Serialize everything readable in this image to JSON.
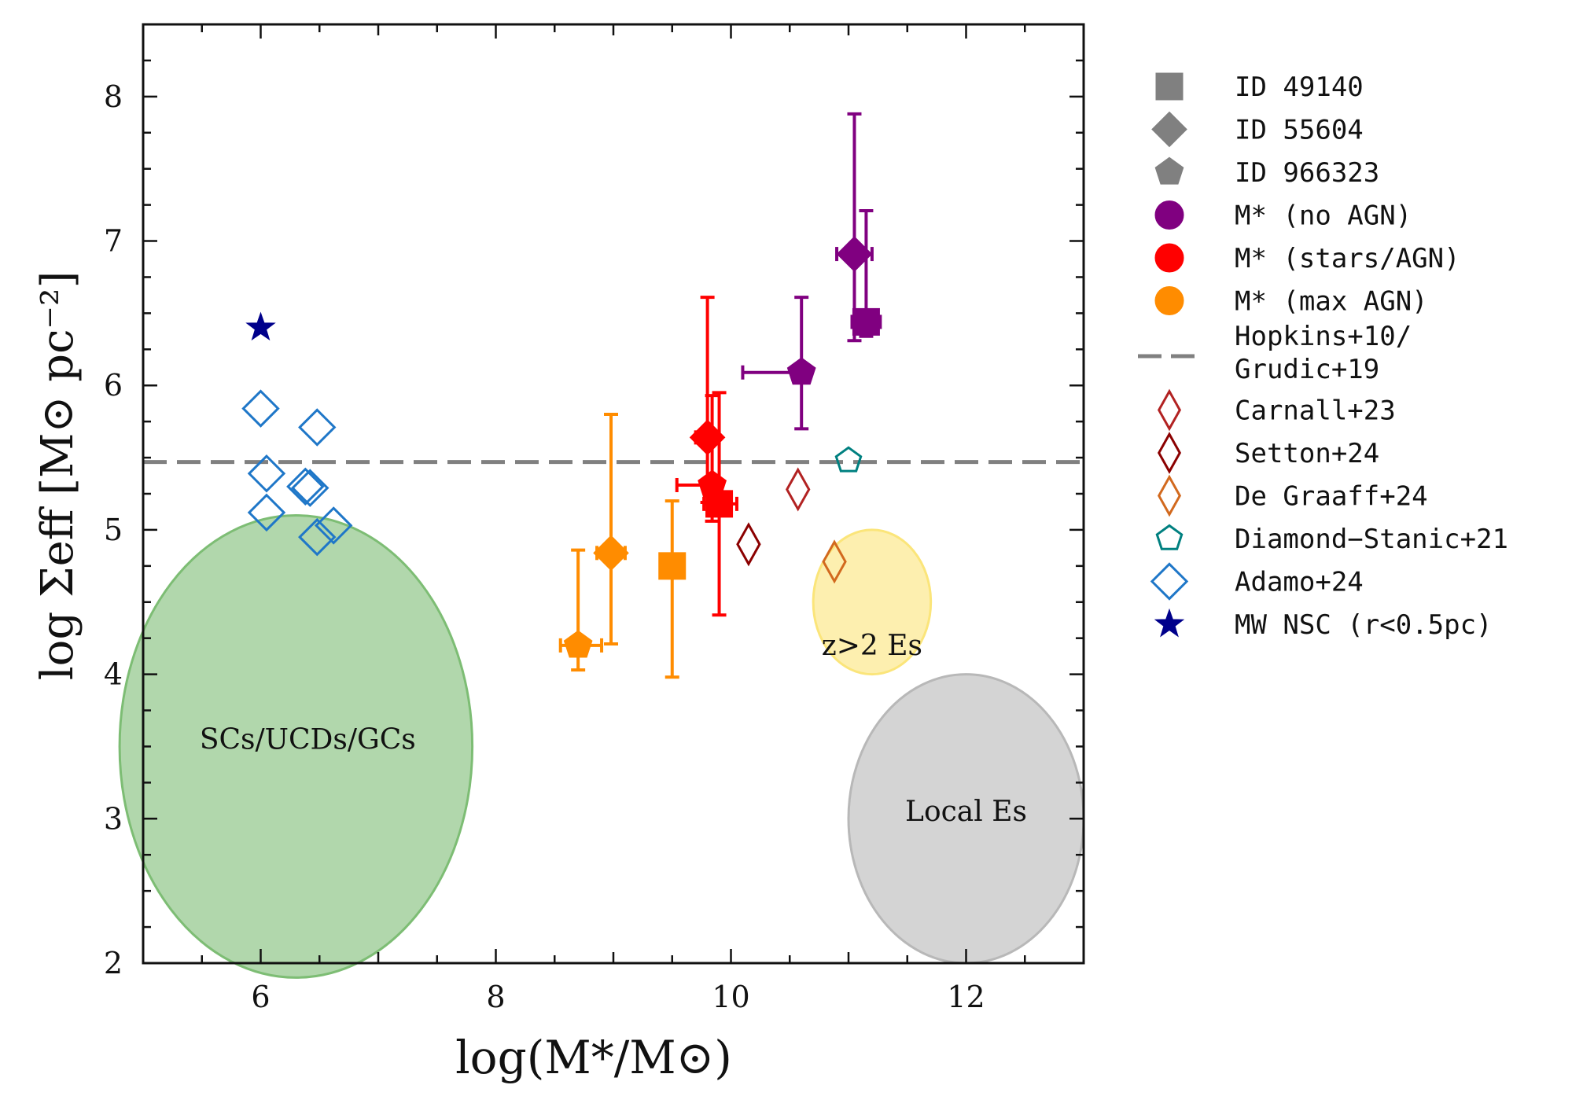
{
  "chart_data": {
    "type": "scatter",
    "xlabel": "log(M*/M⊙)",
    "ylabel": "log Σeff [M⊙ pc⁻²]",
    "xlim": [
      5,
      13
    ],
    "ylim": [
      2,
      8.5
    ],
    "xticks": [
      6,
      8,
      10,
      12
    ],
    "yticks": [
      2,
      3,
      4,
      5,
      6,
      7,
      8
    ],
    "xtick_labels": [
      "6",
      "8",
      "10",
      "12"
    ],
    "ytick_labels": [
      "2",
      "3",
      "4",
      "5",
      "6",
      "7",
      "8"
    ],
    "reference_line": {
      "name": "Hopkins+10/ Grudic+19",
      "y": 5.47,
      "color": "#808080"
    },
    "regions": [
      {
        "name": "SCs/UCDs/GCs",
        "cx": 6.3,
        "cy": 3.5,
        "rx": 1.5,
        "ry": 1.6,
        "color": "#7dbd74",
        "label": "SCs/UCDs/GCs"
      },
      {
        "name": "z>2 Es",
        "cx": 11.2,
        "cy": 4.5,
        "rx": 0.5,
        "ry": 0.5,
        "color": "#fbe57a",
        "label": "z>2 Es"
      },
      {
        "name": "Local Es",
        "cx": 12.0,
        "cy": 3.0,
        "rx": 1.0,
        "ry": 1.0,
        "color": "#b8b8b8",
        "label": "Local Es"
      }
    ],
    "series": [
      {
        "name": "ID 49140 M* (no AGN)",
        "marker": "square",
        "color": "#800080",
        "x": 11.15,
        "y": 6.44,
        "xerr": [
          0.12,
          0.12
        ],
        "yerr": [
          0.1,
          0.77
        ]
      },
      {
        "name": "ID 55604 M* (no AGN)",
        "marker": "diamond",
        "color": "#800080",
        "x": 11.05,
        "y": 6.91,
        "xerr": [
          0.15,
          0.15
        ],
        "yerr": [
          0.6,
          0.97
        ]
      },
      {
        "name": "ID 966323 M* (no AGN)",
        "marker": "pentagon",
        "color": "#800080",
        "x": 10.6,
        "y": 6.09,
        "xerr": [
          0.5,
          0.0
        ],
        "yerr": [
          0.39,
          0.52
        ]
      },
      {
        "name": "ID 49140 M* (stars/AGN)",
        "marker": "square",
        "color": "#ff0000",
        "x": 9.9,
        "y": 5.18,
        "xerr": [
          0.13,
          0.15
        ],
        "yerr": [
          0.77,
          0.77
        ]
      },
      {
        "name": "ID 55604 M* (stars/AGN)",
        "marker": "diamond",
        "color": "#ff0000",
        "x": 9.8,
        "y": 5.64,
        "xerr": [
          0.1,
          0.1
        ],
        "yerr": [
          0.45,
          0.97
        ]
      },
      {
        "name": "ID 966323 M* (stars/AGN)",
        "marker": "pentagon",
        "color": "#ff0000",
        "x": 9.84,
        "y": 5.31,
        "xerr": [
          0.3,
          0.05
        ],
        "yerr": [
          0.25,
          0.62
        ]
      },
      {
        "name": "ID 49140 M* (max AGN)",
        "marker": "square",
        "color": "#ff8c00",
        "x": 9.5,
        "y": 4.75,
        "xerr": [
          0.0,
          0.0
        ],
        "yerr": [
          0.77,
          0.45
        ]
      },
      {
        "name": "ID 55604 M* (max AGN)",
        "marker": "diamond",
        "color": "#ff8c00",
        "x": 8.98,
        "y": 4.84,
        "xerr": [
          0.12,
          0.12
        ],
        "yerr": [
          0.63,
          0.96
        ]
      },
      {
        "name": "ID 966323 M* (max AGN)",
        "marker": "pentagon",
        "color": "#ff8c00",
        "x": 8.7,
        "y": 4.2,
        "xerr": [
          0.15,
          0.2
        ],
        "yerr": [
          0.17,
          0.66
        ]
      },
      {
        "name": "Carnall+23",
        "marker": "thin-diamond-open",
        "color": "#b22222",
        "x": 10.57,
        "y": 5.28
      },
      {
        "name": "Setton+24",
        "marker": "thin-diamond-open",
        "color": "#8b0000",
        "x": 10.15,
        "y": 4.9
      },
      {
        "name": "De Graaff+24",
        "marker": "thin-diamond-open",
        "color": "#d2691e",
        "x": 10.88,
        "y": 4.78
      },
      {
        "name": "Diamond-Stanic+21",
        "marker": "pentagon-open",
        "color": "#008080",
        "x": 11.0,
        "y": 5.48
      },
      {
        "name": "Adamo+24",
        "marker": "diamond-open",
        "color": "#1f77c8",
        "points": [
          [
            6.0,
            5.84
          ],
          [
            6.48,
            5.71
          ],
          [
            6.05,
            5.39
          ],
          [
            6.38,
            5.3
          ],
          [
            6.42,
            5.29
          ],
          [
            6.05,
            5.12
          ],
          [
            6.48,
            4.95
          ],
          [
            6.62,
            5.03
          ]
        ]
      },
      {
        "name": "MW NSC (r<0.5pc)",
        "marker": "star",
        "color": "#00008b",
        "x": 6.0,
        "y": 6.4
      }
    ]
  },
  "legend": [
    {
      "label": "ID 49140",
      "marker": "square",
      "color": "#808080"
    },
    {
      "label": "ID 55604",
      "marker": "diamond",
      "color": "#808080"
    },
    {
      "label": "ID 966323",
      "marker": "pentagon",
      "color": "#808080"
    },
    {
      "label": "M* (no AGN)",
      "marker": "circle",
      "color": "#800080"
    },
    {
      "label": "M* (stars/AGN)",
      "marker": "circle",
      "color": "#ff0000"
    },
    {
      "label": "M* (max AGN)",
      "marker": "circle",
      "color": "#ff8c00"
    },
    {
      "label": "Hopkins+10/",
      "label2": "Grudic+19",
      "marker": "dash",
      "color": "#808080"
    },
    {
      "label": "Carnall+23",
      "marker": "thin-diamond-open",
      "color": "#b22222"
    },
    {
      "label": "Setton+24",
      "marker": "thin-diamond-open",
      "color": "#8b0000"
    },
    {
      "label": "De Graaff+24",
      "marker": "thin-diamond-open",
      "color": "#d2691e"
    },
    {
      "label": "Diamond−Stanic+21",
      "marker": "pentagon-open",
      "color": "#008080"
    },
    {
      "label": "Adamo+24",
      "marker": "diamond-open",
      "color": "#1f77c8"
    },
    {
      "label": "MW NSC (r<0.5pc)",
      "marker": "star",
      "color": "#00008b"
    }
  ]
}
